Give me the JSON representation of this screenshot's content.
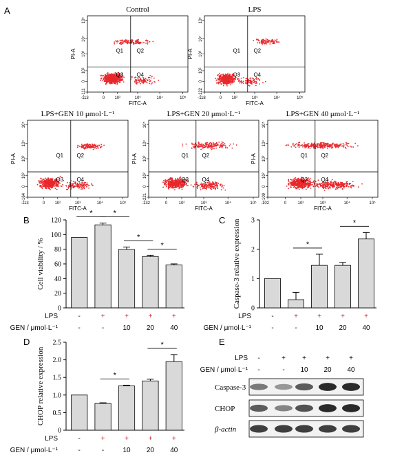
{
  "panel_labels": {
    "A": "A",
    "B": "B",
    "C": "C",
    "D": "D",
    "E": "E"
  },
  "flow_panels": [
    {
      "title": "Control",
      "ylabel": "PI-A",
      "xlabel": "FITC-A",
      "quadrants": [
        "Q1",
        "Q2",
        "Q3",
        "Q4"
      ],
      "xticks": [
        "-113",
        "0",
        "10²",
        "10³",
        "10⁴",
        "10⁵"
      ],
      "yticks": [
        "-111",
        "0",
        "10²",
        "10³",
        "10⁴",
        "10⁵"
      ]
    },
    {
      "title": "LPS",
      "ylabel": "PI-A",
      "xlabel": "FITC-A",
      "quadrants": [
        "Q1",
        "Q2",
        "Q3",
        "Q4"
      ],
      "xticks": [
        "-118",
        "0",
        "10²",
        "10³",
        "10⁴",
        "10⁵"
      ],
      "yticks": [
        "-122",
        "0",
        "10²",
        "10³",
        "10⁴",
        "10⁵"
      ]
    },
    {
      "title": "LPS+GEN 10 μmol·L⁻¹",
      "ylabel": "PI-A",
      "xlabel": "FITC-A",
      "quadrants": [
        "Q1",
        "Q2",
        "Q3",
        "Q4"
      ],
      "xticks": [
        "-113",
        "0",
        "10²",
        "10³",
        "10⁴",
        "10⁵"
      ],
      "yticks": [
        "-164",
        "0",
        "10²",
        "10³",
        "10⁴",
        "10⁵"
      ]
    },
    {
      "title": "LPS+GEN 20 μmol·L⁻¹",
      "ylabel": "PI-A",
      "xlabel": "FITC-A",
      "quadrants": [
        "Q1",
        "Q2",
        "Q3",
        "Q4"
      ],
      "xticks": [
        "-132",
        "0",
        "10²",
        "10³",
        "10⁴",
        "10⁵"
      ],
      "yticks": [
        "-221",
        "0",
        "10²",
        "10³",
        "10⁴",
        "10⁵"
      ]
    },
    {
      "title": "LPS+GEN 40 μmol·L⁻¹",
      "ylabel": "PI-A",
      "xlabel": "FITC-A",
      "quadrants": [
        "Q1",
        "Q2",
        "Q3",
        "Q4"
      ],
      "xticks": [
        "-102",
        "0",
        "10²",
        "10³",
        "10⁴",
        "10⁵"
      ],
      "yticks": [
        "-109",
        "0",
        "10²",
        "10³",
        "10⁴",
        "10⁵"
      ]
    }
  ],
  "chart_data": [
    {
      "panel": "B",
      "type": "bar",
      "ylabel": "Cell viability / %",
      "ylim": [
        0,
        125
      ],
      "yticks": [
        "0",
        "20",
        "40",
        "60",
        "80",
        "100",
        "120"
      ],
      "lps_row_label": "LPS",
      "gen_row_label": "GEN / μmol·L⁻¹",
      "lps": [
        "-",
        "+",
        "+",
        "+",
        "+"
      ],
      "gen": [
        "-",
        "-",
        "10",
        "20",
        "40"
      ],
      "values": [
        100,
        118,
        83,
        73,
        61
      ],
      "errors": [
        0,
        2.5,
        3.5,
        1.8,
        1.5
      ],
      "sig": [
        {
          "from": 0,
          "to": 1,
          "label": "*"
        },
        {
          "from": 1,
          "to": 2,
          "label": "*"
        },
        {
          "from": 2,
          "to": 3,
          "label": "*"
        },
        {
          "from": 3,
          "to": 4,
          "label": "*"
        }
      ]
    },
    {
      "panel": "C",
      "type": "bar",
      "ylabel": "Caspase-3 relative expression",
      "ylim": [
        0,
        3
      ],
      "yticks": [
        "0",
        "1",
        "2",
        "3"
      ],
      "lps_row_label": "LPS",
      "gen_row_label": "GEN / μmol·L⁻¹",
      "lps": [
        "-",
        "+",
        "+",
        "+",
        "+"
      ],
      "gen": [
        "-",
        "-",
        "10",
        "20",
        "40"
      ],
      "values": [
        1.0,
        0.28,
        1.45,
        1.45,
        2.35
      ],
      "errors": [
        0,
        0.25,
        0.38,
        0.1,
        0.22
      ],
      "sig": [
        {
          "from": 1,
          "to": 2,
          "label": "*"
        },
        {
          "from": 3,
          "to": 4,
          "label": "*"
        }
      ]
    },
    {
      "panel": "D",
      "type": "bar",
      "ylabel": "CHOP relative expression",
      "ylim": [
        0,
        2.5
      ],
      "yticks": [
        "0",
        "0.5",
        "1.0",
        "1.5",
        "2.0",
        "2.5"
      ],
      "lps_row_label": "LPS",
      "gen_row_label": "GEN / μmol·L⁻¹",
      "lps": [
        "-",
        "+",
        "+",
        "+",
        "+"
      ],
      "gen": [
        "-",
        "-",
        "10",
        "20",
        "40"
      ],
      "values": [
        1.0,
        0.76,
        1.26,
        1.4,
        1.95
      ],
      "errors": [
        0,
        0.02,
        0.02,
        0.05,
        0.2
      ],
      "sig": [
        {
          "from": 1,
          "to": 2,
          "label": "*"
        },
        {
          "from": 3,
          "to": 4,
          "label": "*"
        }
      ]
    }
  ],
  "western_blot": {
    "lps_row_label": "LPS",
    "gen_row_label": "GEN / μmol·L⁻¹",
    "lps": [
      "-",
      "+",
      "+",
      "+",
      "+"
    ],
    "gen": [
      "-",
      "-",
      "10",
      "20",
      "40"
    ],
    "bands": [
      {
        "name": "Caspase-3",
        "intensity": [
          0.55,
          0.4,
          0.7,
          0.95,
          0.95
        ]
      },
      {
        "name": "CHOP",
        "intensity": [
          0.7,
          0.5,
          0.75,
          0.95,
          0.95
        ]
      },
      {
        "name": "β-actin",
        "intensity": [
          0.85,
          0.85,
          0.85,
          0.85,
          0.85
        ]
      }
    ]
  },
  "colors": {
    "dots": "#e8282c",
    "bar": "#d9d9d9",
    "ink": "#000000"
  }
}
